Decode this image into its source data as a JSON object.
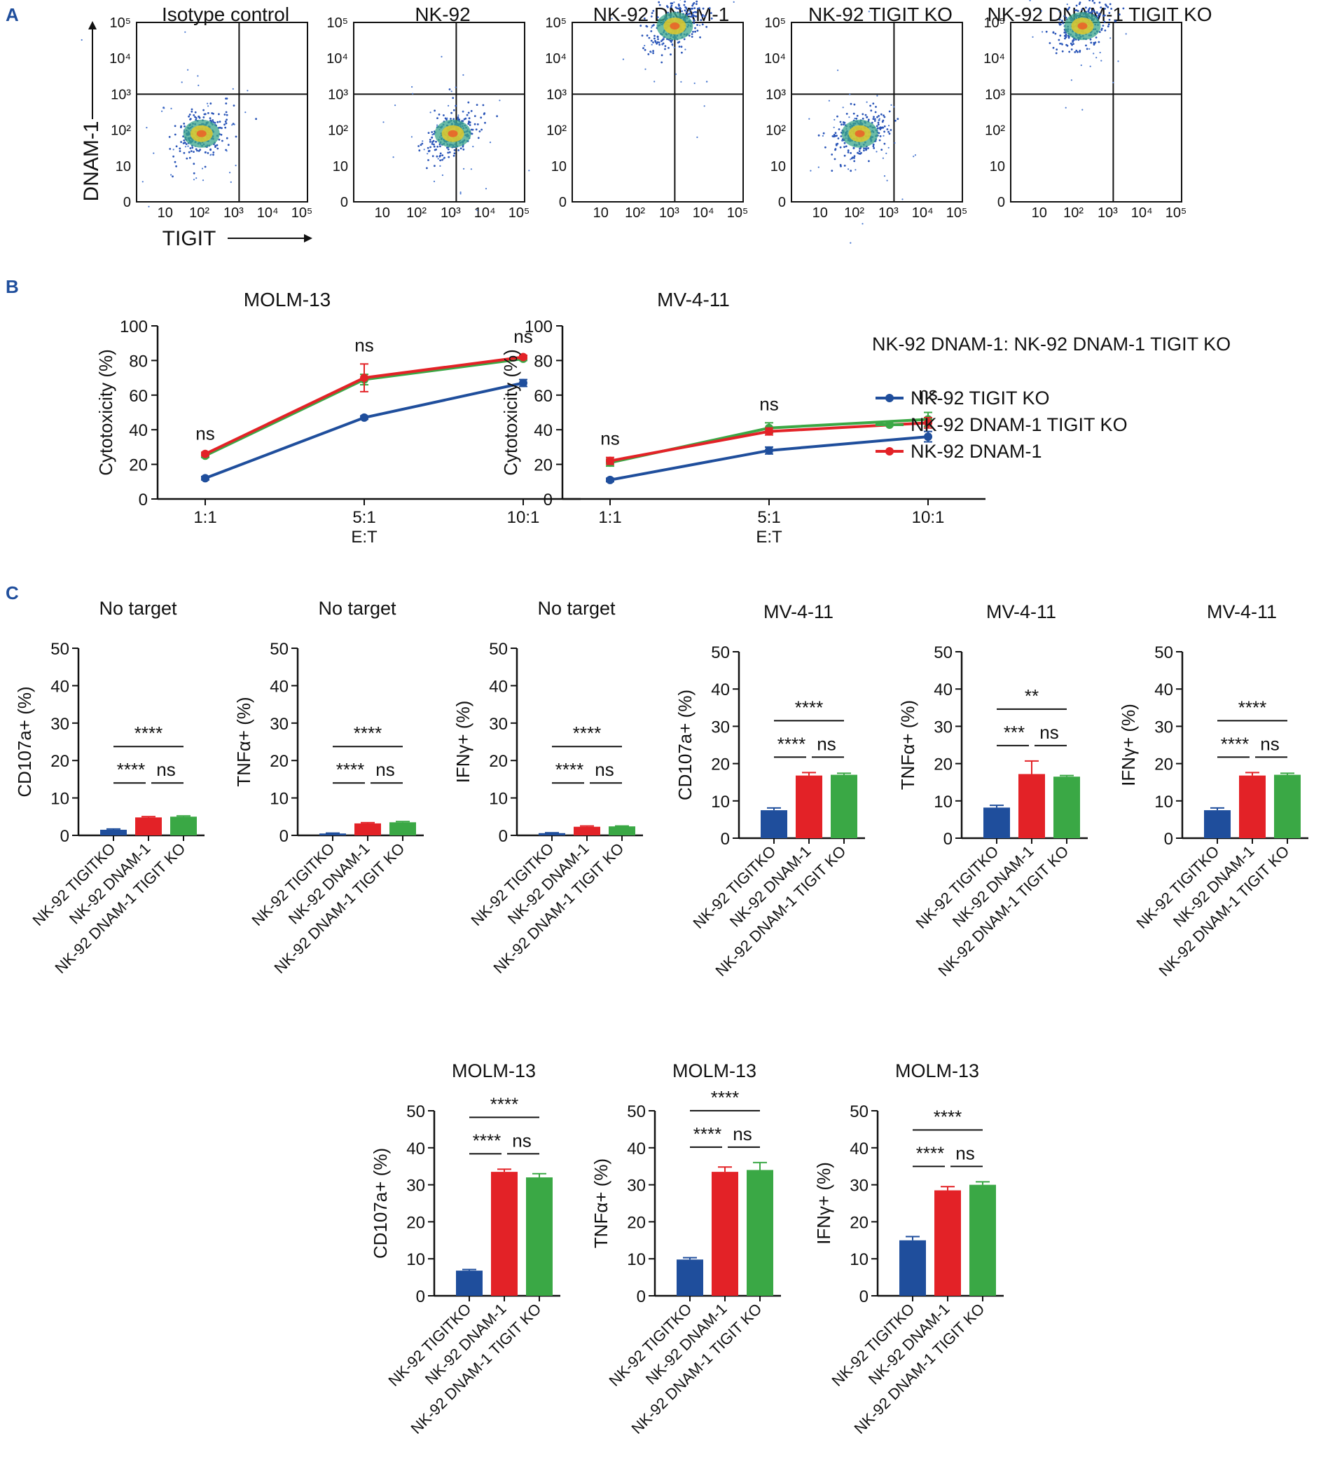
{
  "panel_labels": {
    "a": "A",
    "b": "B",
    "c": "C"
  },
  "colors": {
    "blue": "#1f4e9c",
    "green": "#3aa845",
    "red": "#e32227",
    "panel_label": "#1f4e9c"
  },
  "flow": {
    "y_axis_label": "DNAM-1",
    "x_axis_label": "TIGIT",
    "tick_labels": [
      "0",
      "10",
      "10²",
      "10³",
      "10⁴",
      "10⁵"
    ],
    "x_tick_labels": [
      "10",
      "10²",
      "10³",
      "10⁴",
      "10⁵"
    ],
    "plots": [
      {
        "title": "Isotype control",
        "cluster": {
          "tigit_log": 1.9,
          "dnam1_log": 1.9
        }
      },
      {
        "title": "NK-92",
        "cluster": {
          "tigit_log": 2.9,
          "dnam1_log": 1.9
        }
      },
      {
        "title": "NK-92 DNAM-1",
        "cluster": {
          "tigit_log": 3.0,
          "dnam1_log": 4.9
        }
      },
      {
        "title": "NK-92 TIGIT KO",
        "cluster": {
          "tigit_log": 2.0,
          "dnam1_log": 1.9
        }
      },
      {
        "title": "NK-92 DNAM-1 TIGIT KO",
        "cluster": {
          "tigit_log": 2.1,
          "dnam1_log": 4.9
        }
      }
    ]
  },
  "chart_data": [
    {
      "type": "line",
      "panel": "B",
      "title": "MOLM-13",
      "categories": [
        "1:1",
        "5:1",
        "10:1"
      ],
      "xlabel": "E:T",
      "ylabel": "Cytotoxicity (%)",
      "ylim": [
        0,
        100
      ],
      "yticks": [
        "0",
        "20",
        "40",
        "60",
        "80",
        "100"
      ],
      "series": [
        {
          "name": "NK-92 TIGIT KO",
          "color": "blue",
          "values": [
            12,
            47,
            67
          ],
          "errors": [
            1,
            1,
            2
          ]
        },
        {
          "name": "NK-92 DNAM-1 TIGIT KO",
          "color": "green",
          "values": [
            25,
            69,
            81
          ],
          "errors": [
            1,
            3,
            1
          ]
        },
        {
          "name": "NK-92 DNAM-1",
          "color": "red",
          "values": [
            26,
            70,
            82
          ],
          "errors": [
            1,
            8,
            1
          ]
        }
      ],
      "annotations": [
        "ns",
        "ns",
        "ns"
      ]
    },
    {
      "type": "line",
      "panel": "B",
      "title": "MV-4-11",
      "categories": [
        "1:1",
        "5:1",
        "10:1"
      ],
      "xlabel": "E:T",
      "ylabel": "Cytotoxicity (%)",
      "ylim": [
        0,
        100
      ],
      "yticks": [
        "0",
        "20",
        "40",
        "60",
        "80",
        "100"
      ],
      "series": [
        {
          "name": "NK-92 TIGIT KO",
          "color": "blue",
          "values": [
            11,
            28,
            36
          ],
          "errors": [
            1,
            2,
            3
          ]
        },
        {
          "name": "NK-92 DNAM-1 TIGIT KO",
          "color": "green",
          "values": [
            21,
            41,
            46
          ],
          "errors": [
            2,
            3,
            4
          ]
        },
        {
          "name": "NK-92 DNAM-1",
          "color": "red",
          "values": [
            22,
            39,
            44
          ],
          "errors": [
            2,
            2,
            3
          ]
        }
      ],
      "annotations": [
        "ns",
        "ns",
        "ns"
      ]
    },
    {
      "type": "bar",
      "panel": "C",
      "title": "No target",
      "ylabel": "CD107a+ (%)",
      "ylim": [
        0,
        50
      ],
      "yticks": [
        "0",
        "10",
        "20",
        "30",
        "40",
        "50"
      ],
      "categories": [
        "NK-92 TIGITKO",
        "NK-92 DNAM-1",
        "NK-92 DNAM-1 TIGIT KO"
      ],
      "values": [
        1.5,
        4.8,
        5.0
      ],
      "errors": [
        0.2,
        0.2,
        0.2
      ],
      "significance": {
        "top": "****",
        "left": "****",
        "right": "ns"
      }
    },
    {
      "type": "bar",
      "panel": "C",
      "title": "No target",
      "ylabel": "TNFα+ (%)",
      "ylim": [
        0,
        50
      ],
      "yticks": [
        "0",
        "10",
        "20",
        "30",
        "40",
        "50"
      ],
      "categories": [
        "NK-92 TIGITKO",
        "NK-92 DNAM-1",
        "NK-92 DNAM-1 TIGIT KO"
      ],
      "values": [
        0.5,
        3.2,
        3.5
      ],
      "errors": [
        0.1,
        0.2,
        0.2
      ],
      "significance": {
        "top": "****",
        "left": "****",
        "right": "ns"
      }
    },
    {
      "type": "bar",
      "panel": "C",
      "title": "No target",
      "ylabel": "IFNγ+ (%)",
      "ylim": [
        0,
        50
      ],
      "yticks": [
        "0",
        "10",
        "20",
        "30",
        "40",
        "50"
      ],
      "categories": [
        "NK-92 TIGITKO",
        "NK-92 DNAM-1",
        "NK-92 DNAM-1 TIGIT KO"
      ],
      "values": [
        0.6,
        2.3,
        2.4
      ],
      "errors": [
        0.1,
        0.2,
        0.1
      ],
      "significance": {
        "top": "****",
        "left": "****",
        "right": "ns"
      }
    },
    {
      "type": "bar",
      "panel": "C",
      "title": "MV-4-11",
      "ylabel": "CD107a+ (%)",
      "ylim": [
        0,
        50
      ],
      "yticks": [
        "0",
        "10",
        "20",
        "30",
        "40",
        "50"
      ],
      "categories": [
        "NK-92 TIGITKO",
        "NK-92 DNAM-1",
        "NK-92 DNAM-1 TIGIT KO"
      ],
      "values": [
        7.5,
        16.8,
        17.0
      ],
      "errors": [
        0.6,
        0.8,
        0.4
      ],
      "significance": {
        "top": "****",
        "left": "****",
        "right": "ns"
      }
    },
    {
      "type": "bar",
      "panel": "C",
      "title": "MV-4-11",
      "ylabel": "TNFα+ (%)",
      "ylim": [
        0,
        50
      ],
      "yticks": [
        "0",
        "10",
        "20",
        "30",
        "40",
        "50"
      ],
      "categories": [
        "NK-92 TIGITKO",
        "NK-92 DNAM-1",
        "NK-92 DNAM-1 TIGIT KO"
      ],
      "values": [
        8.2,
        17.2,
        16.5
      ],
      "errors": [
        0.6,
        3.5,
        0.3
      ],
      "significance": {
        "top": "**",
        "left": "***",
        "right": "ns"
      }
    },
    {
      "type": "bar",
      "panel": "C",
      "title": "MV-4-11",
      "ylabel": "IFNγ+ (%)",
      "ylim": [
        0,
        50
      ],
      "yticks": [
        "0",
        "10",
        "20",
        "30",
        "40",
        "50"
      ],
      "categories": [
        "NK-92 TIGITKO",
        "NK-92 DNAM-1",
        "NK-92 DNAM-1 TIGIT KO"
      ],
      "values": [
        7.5,
        16.8,
        17.0
      ],
      "errors": [
        0.6,
        0.8,
        0.4
      ],
      "significance": {
        "top": "****",
        "left": "****",
        "right": "ns"
      }
    },
    {
      "type": "bar",
      "panel": "C",
      "title": "MOLM-13",
      "ylabel": "CD107a+ (%)",
      "ylim": [
        0,
        50
      ],
      "yticks": [
        "0",
        "10",
        "20",
        "30",
        "40",
        "50"
      ],
      "categories": [
        "NK-92 TIGITKO",
        "NK-92 DNAM-1",
        "NK-92 DNAM-1 TIGIT KO"
      ],
      "values": [
        6.8,
        33.5,
        32.0
      ],
      "errors": [
        0.3,
        0.7,
        1.0
      ],
      "significance": {
        "top": "****",
        "left": "****",
        "right": "ns"
      }
    },
    {
      "type": "bar",
      "panel": "C",
      "title": "MOLM-13",
      "ylabel": "TNFα+ (%)",
      "ylim": [
        0,
        50
      ],
      "yticks": [
        "0",
        "10",
        "20",
        "30",
        "40",
        "50"
      ],
      "categories": [
        "NK-92 TIGITKO",
        "NK-92 DNAM-1",
        "NK-92 DNAM-1 TIGIT KO"
      ],
      "values": [
        9.8,
        33.5,
        34.0
      ],
      "errors": [
        0.5,
        1.3,
        2.0
      ],
      "significance": {
        "top": "****",
        "left": "****",
        "right": "ns"
      }
    },
    {
      "type": "bar",
      "panel": "C",
      "title": "MOLM-13",
      "ylabel": "IFNγ+ (%)",
      "ylim": [
        0,
        50
      ],
      "yticks": [
        "0",
        "10",
        "20",
        "30",
        "40",
        "50"
      ],
      "categories": [
        "NK-92 TIGITKO",
        "NK-92 DNAM-1",
        "NK-92 DNAM-1 TIGIT KO"
      ],
      "values": [
        15.0,
        28.5,
        30.0
      ],
      "errors": [
        1.0,
        1.0,
        0.8
      ],
      "significance": {
        "top": "****",
        "left": "****",
        "right": "ns"
      }
    }
  ],
  "legend": {
    "title": "NK-92 DNAM-1: NK-92 DNAM-1 TIGIT KO",
    "items": [
      {
        "label": "NK-92 TIGIT KO",
        "color": "blue"
      },
      {
        "label": "NK-92 DNAM-1 TIGIT KO",
        "color": "green"
      },
      {
        "label": "NK-92 DNAM-1",
        "color": "red"
      }
    ]
  }
}
